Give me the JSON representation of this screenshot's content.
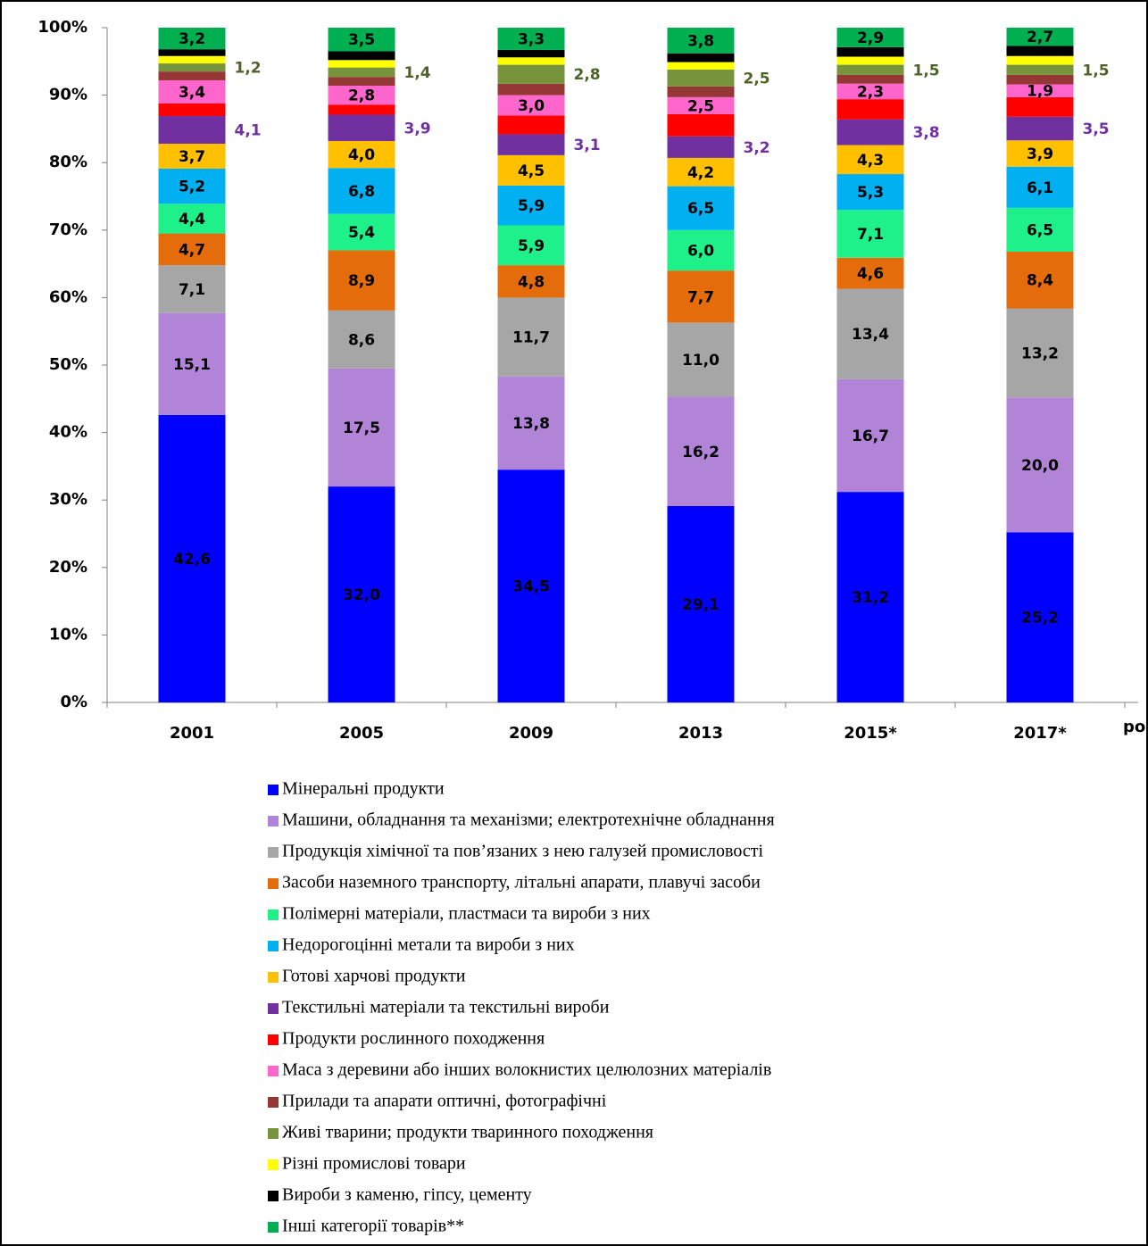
{
  "chart_data": {
    "type": "stacked_bar",
    "x_label": "роки",
    "categories": [
      "2001",
      "2005",
      "2009",
      "2013",
      "2015*",
      "2017*"
    ],
    "ylim": [
      0,
      100
    ],
    "yticks": [
      {
        "value": 0,
        "label": "0%"
      },
      {
        "value": 10,
        "label": "10%"
      },
      {
        "value": 20,
        "label": "20%"
      },
      {
        "value": 30,
        "label": "30%"
      },
      {
        "value": 40,
        "label": "40%"
      },
      {
        "value": 50,
        "label": "50%"
      },
      {
        "value": 60,
        "label": "60%"
      },
      {
        "value": 70,
        "label": "70%"
      },
      {
        "value": 80,
        "label": "80%"
      },
      {
        "value": 90,
        "label": "90%"
      },
      {
        "value": 100,
        "label": "100%"
      }
    ],
    "series": [
      {
        "name": "Мінеральні продукти",
        "color": "#0000ff",
        "values": [
          42.6,
          32.0,
          34.5,
          29.1,
          31.2,
          25.2
        ],
        "value_labels": [
          "42,6",
          "32,0",
          "34,5",
          "29,1",
          "31,2",
          "25,2"
        ]
      },
      {
        "name": "Машини, обладнання та механізми; електротехнічне обладнання",
        "color": "#b284d8",
        "values": [
          15.1,
          17.5,
          13.8,
          16.2,
          16.7,
          20.0
        ],
        "value_labels": [
          "15,1",
          "17,5",
          "13,8",
          "16,2",
          "16,7",
          "20,0"
        ]
      },
      {
        "name": "Продукція хімічної та пов’язаних з нею галузей промисловості",
        "color": "#a6a6a6",
        "values": [
          7.1,
          8.6,
          11.7,
          11.0,
          13.4,
          13.2
        ],
        "value_labels": [
          "7,1",
          "8,6",
          "11,7",
          "11,0",
          "13,4",
          "13,2"
        ]
      },
      {
        "name": "Засоби наземного транспорту, літальні апарати, плавучі засоби",
        "color": "#e46c0a",
        "values": [
          4.7,
          8.9,
          4.8,
          7.7,
          4.6,
          8.4
        ],
        "value_labels": [
          "4,7",
          "8,9",
          "4,8",
          "7,7",
          "4,6",
          "8,4"
        ]
      },
      {
        "name": "Полімерні матеріали, пластмаси та вироби з них",
        "color": "#1ef08a",
        "values": [
          4.4,
          5.4,
          5.9,
          6.0,
          7.1,
          6.5
        ],
        "value_labels": [
          "4,4",
          "5,4",
          "5,9",
          "6,0",
          "7,1",
          "6,5"
        ]
      },
      {
        "name": "Недорогоцінні метали та вироби з них",
        "color": "#00b0f0",
        "values": [
          5.2,
          6.8,
          5.9,
          6.5,
          5.3,
          6.1
        ],
        "value_labels": [
          "5,2",
          "6,8",
          "5,9",
          "6,5",
          "5,3",
          "6,1"
        ]
      },
      {
        "name": "Готові харчові продукти",
        "color": "#ffc000",
        "values": [
          3.7,
          4.0,
          4.5,
          4.2,
          4.3,
          3.9
        ],
        "value_labels": [
          "3,7",
          "4,0",
          "4,5",
          "4,2",
          "4,3",
          "3,9"
        ]
      },
      {
        "name": "Текстильні матеріали та текстильні вироби",
        "color": "#7030a0",
        "values": [
          4.1,
          3.9,
          3.1,
          3.2,
          3.8,
          3.5
        ],
        "value_labels": [
          "4,1",
          "3,9",
          "3,1",
          "3,2",
          "3,8",
          "3,5"
        ],
        "label_position": "right",
        "label_color": "#7030a0"
      },
      {
        "name": "Продукти рослинного походження",
        "color": "#ff0000",
        "values": [
          1.9,
          1.5,
          2.8,
          3.3,
          3.0,
          2.9
        ]
      },
      {
        "name": "Маса з деревини або інших волокнистих целюлозних матеріалів",
        "color": "#ff66cc",
        "values": [
          3.4,
          2.8,
          3.0,
          2.5,
          2.3,
          1.9
        ],
        "value_labels": [
          "3,4",
          "2,8",
          "3,0",
          "2,5",
          "2,3",
          "1,9"
        ]
      },
      {
        "name": "Прилади та апарати оптичні, фотографічні",
        "color": "#953735",
        "values": [
          1.3,
          1.3,
          1.7,
          1.6,
          1.3,
          1.4
        ]
      },
      {
        "name": "Живі тварини; продукти тваринного походження",
        "color": "#77933c",
        "values": [
          1.2,
          1.4,
          2.8,
          2.5,
          1.5,
          1.5
        ],
        "value_labels": [
          "1,2",
          "1,4",
          "2,8",
          "2,5",
          "1,5",
          "1,5"
        ],
        "label_position": "right",
        "label_color": "#4f6228"
      },
      {
        "name": "Різні промислові товари",
        "color": "#ffff00",
        "values": [
          1.1,
          1.1,
          1.1,
          1.1,
          1.2,
          1.3
        ]
      },
      {
        "name": "Вироби з каменю, гіпсу, цементу",
        "color": "#000000",
        "values": [
          1.0,
          1.3,
          1.1,
          1.3,
          1.4,
          1.5
        ]
      },
      {
        "name": "Інші категорії товарів**",
        "color": "#00b050",
        "values": [
          3.2,
          3.5,
          3.3,
          3.8,
          2.9,
          2.7
        ],
        "value_labels": [
          "3,2",
          "3,5",
          "3,3",
          "3,8",
          "2,9",
          "2,7"
        ]
      }
    ]
  }
}
